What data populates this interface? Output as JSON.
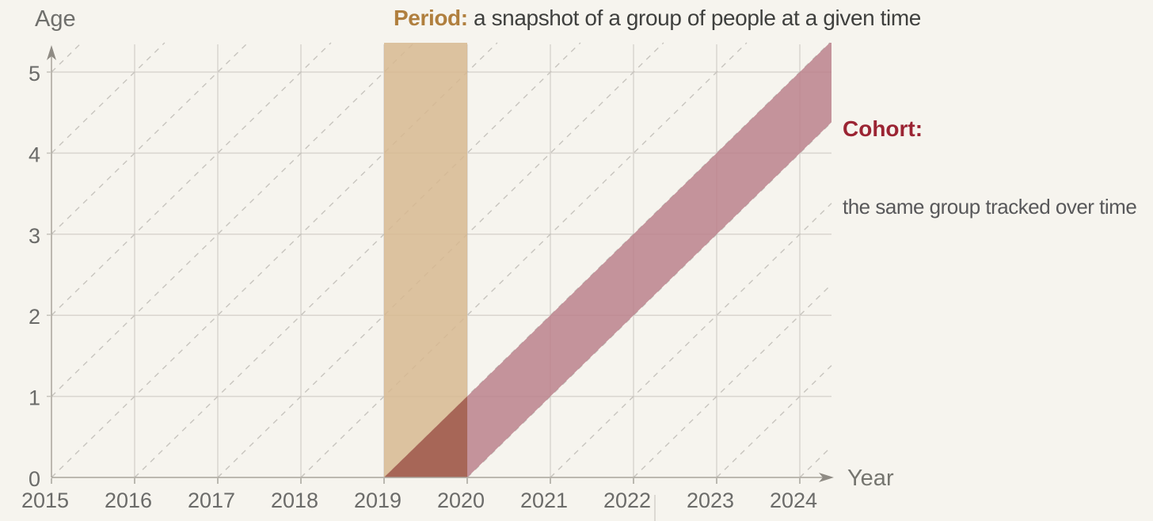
{
  "page": {
    "background": "#f6f4ee"
  },
  "header": {
    "period_title": {
      "accent": "Period:",
      "text": " a snapshot of a group of people at a given time",
      "accent_color": "#b07f3e",
      "text_color": "#3f403e"
    },
    "cohort_title": {
      "accent": "Cohort:",
      "text": "the same group tracked over time",
      "accent_color": "#9b2433",
      "text_color": "#58585a"
    }
  },
  "axes": {
    "x_label": "Year",
    "y_label": "Age",
    "x_ticks": [
      "2015",
      "2016",
      "2017",
      "2018",
      "2019",
      "2020",
      "2021",
      "2022",
      "2023",
      "2024"
    ],
    "y_ticks": [
      "0",
      "1",
      "2",
      "3",
      "4",
      "5"
    ]
  },
  "chart_data": {
    "type": "area",
    "title": "Period: a snapshot of a group of people at a given time",
    "subtitle": "Cohort: the same group tracked over time",
    "xlabel": "Year",
    "ylabel": "Age",
    "x_tick_values": [
      2015,
      2016,
      2017,
      2018,
      2019,
      2020,
      2021,
      2022,
      2023,
      2024
    ],
    "y_tick_values": [
      0,
      1,
      2,
      3,
      4,
      5
    ],
    "xlim": [
      2015,
      2024.38
    ],
    "ylim": [
      0,
      5.36
    ],
    "grid": true,
    "diagonal_guides": {
      "slope_age_per_year": 1,
      "line_style": "dashed",
      "intercept_min": -9,
      "intercept_max": 5
    },
    "bands": [
      {
        "name": "Period",
        "kind": "vertical-band",
        "year_start": 2019,
        "year_end": 2020,
        "age_start": 0,
        "age_end": 5.36,
        "fill": "#d7b890",
        "opacity": 0.85
      },
      {
        "name": "Cohort",
        "kind": "diagonal-band",
        "birth_year_start": 2019,
        "birth_year_end": 2020,
        "slope_age_per_year": 1,
        "fill": "#bb818c",
        "opacity": 0.85
      },
      {
        "name": "Period-Cohort overlap",
        "kind": "intersection",
        "fill": "#a66555",
        "opacity": 0.97
      }
    ],
    "colors": {
      "background": "#f6f4ee",
      "grid": "#d9d5cf",
      "dashed_guides": "#c7c4be",
      "axis_line": "#a8a49c",
      "arrowhead": "#8f8b84",
      "tick_mark": "#b4b1a9",
      "tick_text": "#6b6b69"
    }
  }
}
